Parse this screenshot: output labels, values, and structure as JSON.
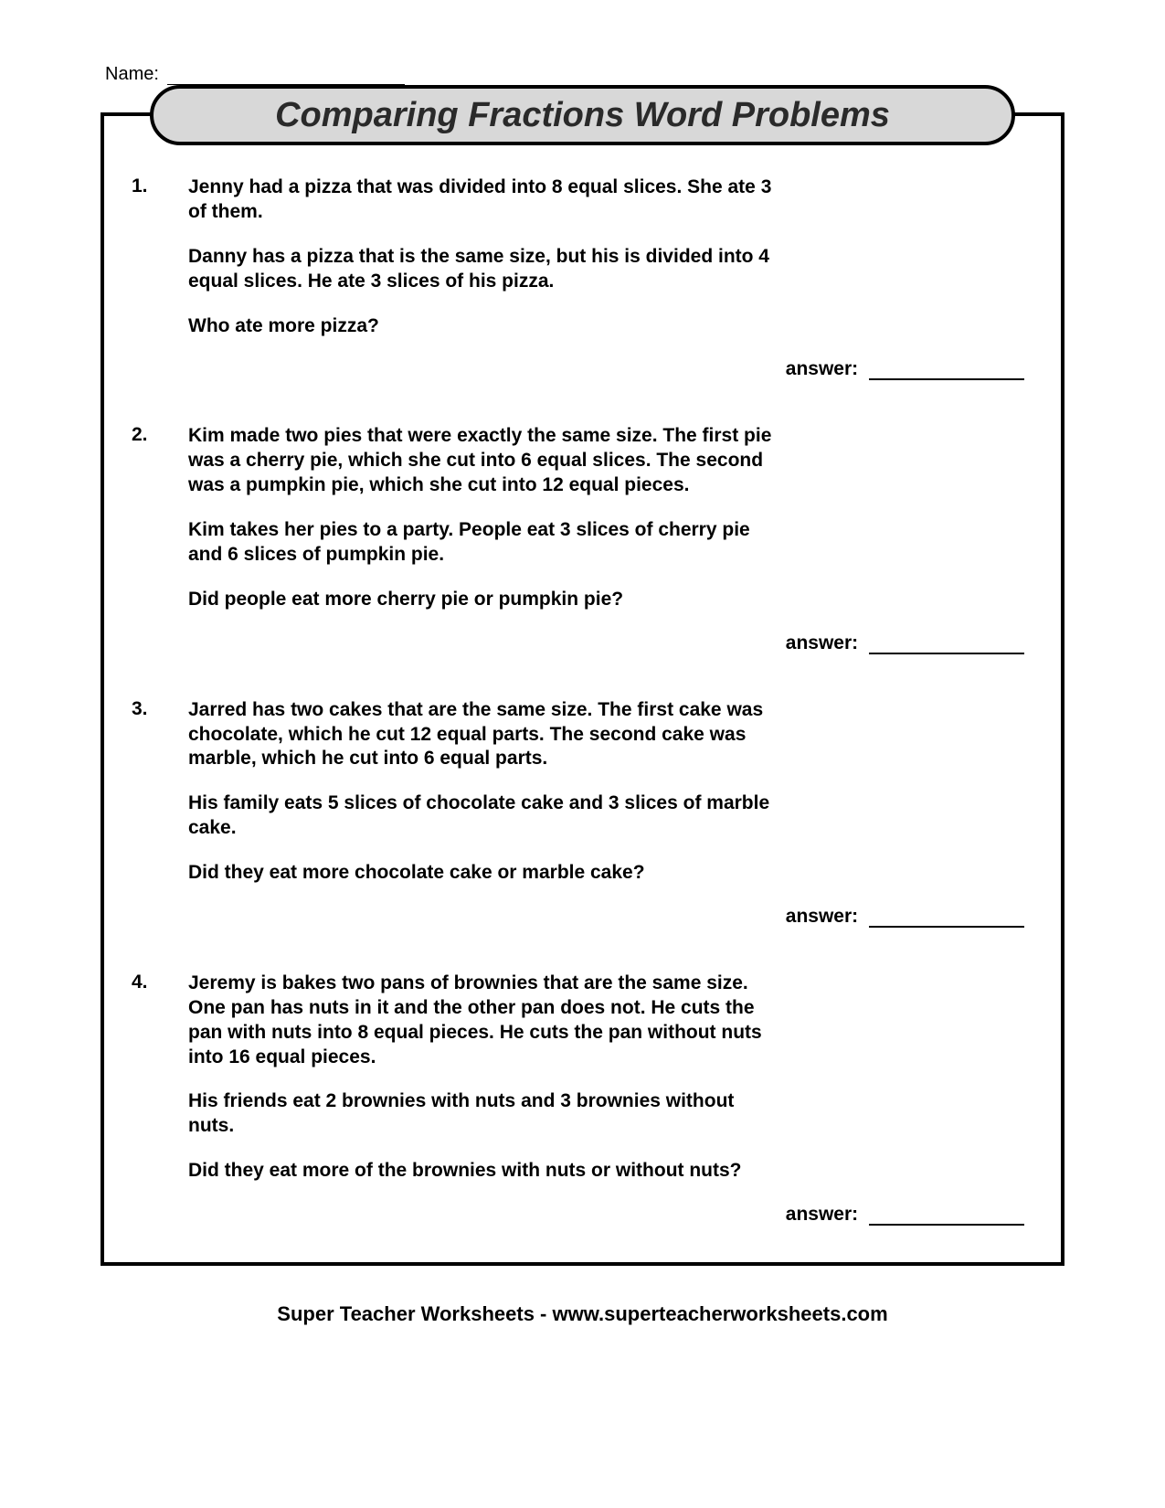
{
  "name_label": "Name:",
  "title": "Comparing Fractions Word Problems",
  "answer_label": "answer:",
  "problems": [
    {
      "num": "1.",
      "paragraphs": [
        "Jenny had a pizza that was divided into 8 equal slices.  She ate 3 of them.",
        "Danny has a pizza that is the same size, but his is divided into 4 equal slices. He ate 3 slices of his pizza.",
        "Who ate more pizza?"
      ]
    },
    {
      "num": "2.",
      "paragraphs": [
        "Kim made two pies that were exactly the same size.  The first pie was a cherry pie, which she cut into 6 equal slices.  The second was a pumpkin pie, which she cut into 12 equal pieces.",
        "Kim takes her pies to a party.  People eat 3 slices of cherry pie and 6 slices of pumpkin pie.",
        "Did people eat more cherry pie or pumpkin pie?"
      ]
    },
    {
      "num": "3.",
      "paragraphs": [
        "Jarred has two cakes that are the same size.  The first cake was chocolate, which he cut 12 equal parts.  The second cake was marble, which he cut into 6 equal parts.",
        "His family eats 5 slices of chocolate cake and 3 slices of marble cake.",
        "Did they eat more chocolate cake or marble cake?"
      ]
    },
    {
      "num": "4.",
      "paragraphs": [
        "Jeremy is bakes two pans of brownies that are the same size.  One pan has nuts in it and the other pan does not.  He cuts the pan with nuts into 8 equal pieces.  He cuts the pan without nuts into 16 equal pieces.",
        "His friends eat 2 brownies with nuts and 3 brownies without nuts.",
        "Did they eat more of the brownies with nuts or without nuts?"
      ]
    }
  ],
  "footer": "Super Teacher Worksheets - www.superteacherworksheets.com",
  "colors": {
    "banner_bg": "#d8d8d8",
    "border": "#000000",
    "text": "#000000"
  }
}
